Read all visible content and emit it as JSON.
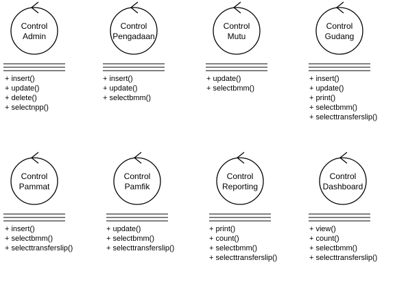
{
  "controls": [
    {
      "id": "admin",
      "name_lines": [
        "Control",
        "Admin"
      ],
      "methods": [
        "+ insert()",
        "+ update()",
        "+ delete()",
        "+ selectnpp()"
      ]
    },
    {
      "id": "pengadaan",
      "name_lines": [
        "Control",
        "Pengadaan"
      ],
      "methods": [
        "+ insert()",
        "+ update()",
        "+ selectbmm()"
      ]
    },
    {
      "id": "mutu",
      "name_lines": [
        "Control",
        "Mutu"
      ],
      "methods": [
        "+ update()",
        "+ selectbmm()"
      ]
    },
    {
      "id": "gudang",
      "name_lines": [
        "Control",
        "Gudang"
      ],
      "methods": [
        "+ insert()",
        "+ update()",
        "+ print()",
        "+ selectbmm()",
        "+ selecttransferslip()"
      ]
    },
    {
      "id": "pammat",
      "name_lines": [
        "Control",
        "Pammat"
      ],
      "methods": [
        "+ insert()",
        "+ selectbmm()",
        "+ selecttransferslip()"
      ]
    },
    {
      "id": "pamfik",
      "name_lines": [
        "Control",
        "Pamfik"
      ],
      "methods": [
        "+ update()",
        "+ selectbmm()",
        "+ selecttransferslip()"
      ]
    },
    {
      "id": "reporting",
      "name_lines": [
        "Control",
        "Reporting"
      ],
      "methods": [
        "+ print()",
        "+ count()",
        "+ selectbmm()",
        "+ selecttransferslip()"
      ]
    },
    {
      "id": "dashboard",
      "name_lines": [
        "Control",
        "Dashboard"
      ],
      "methods": [
        "+ view()",
        "+ count()",
        "+ selectbmm()",
        "+ selecttransferslip()"
      ]
    }
  ]
}
